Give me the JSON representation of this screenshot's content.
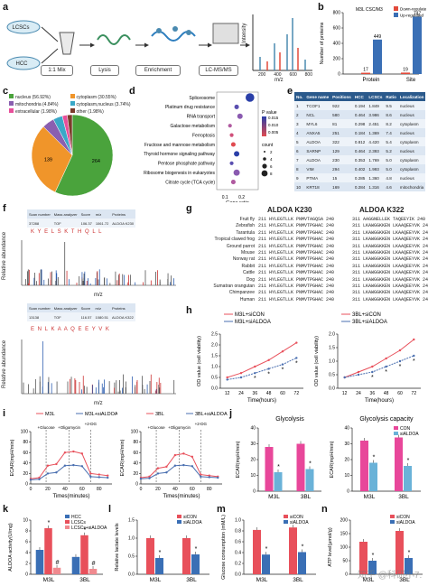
{
  "panels": {
    "a": "a",
    "b": "b",
    "c": "c",
    "d": "d",
    "e": "e",
    "f": "f",
    "g": "g",
    "h": "h",
    "i": "i",
    "j": "j",
    "k": "k",
    "l": "l",
    "m": "m",
    "n": "n"
  },
  "workflow": {
    "lcscs": "LCSCs",
    "hcc": "HCC",
    "mix": "1:1 Mix",
    "lysis": "Lysis",
    "enrichment": "Enrichment",
    "lcms": "LC-MS/MS",
    "ms_ylabel": "Intensity",
    "ms_xlabel": "m/z",
    "ms_ticks": [
      "200",
      "400",
      "600",
      "800"
    ]
  },
  "panel_b": {
    "legend_title": "M3L CSC/M3",
    "legend": [
      "Down-regulated",
      "Up-regulated"
    ],
    "ylabel": "Number of proteins",
    "colors": {
      "down": "#e24a3b",
      "up": "#3a6fb5"
    },
    "chart_data": {
      "type": "bar",
      "categories": [
        "Protein",
        "Site"
      ],
      "series": [
        {
          "name": "Down-regulated",
          "values": [
            17,
            19
          ]
        },
        {
          "name": "Up-regulated",
          "values": [
            449,
            747
          ]
        }
      ],
      "ylim": [
        0,
        800
      ],
      "yticks": [
        "0",
        "200",
        "400",
        "600",
        "800"
      ],
      "labels": [
        "17",
        "449",
        "19",
        "747"
      ]
    }
  },
  "panel_c": {
    "legend": [
      "nucleus (56.92%)",
      "cytoplasm (30.55%)",
      "mitochondria (4.84%)",
      "cytoplasm,nucleus (3.74%)",
      "extracellular (1.98%)",
      "other (1.98%)"
    ],
    "colors": [
      "#4aa33c",
      "#f0952a",
      "#8a5fb0",
      "#3aa8c8",
      "#e84f9a",
      "#7a3b2a"
    ],
    "chart_data": {
      "type": "pie",
      "values": [
        56.92,
        30.55,
        4.84,
        3.74,
        1.98,
        1.98
      ],
      "labels": [
        "264",
        "139",
        "",
        "",
        "",
        ""
      ]
    }
  },
  "panel_d": {
    "xlabel": "Gene ratio",
    "xticks": [
      "0.1",
      "0.2"
    ],
    "legend_p_title": "P value",
    "legend_p_ticks": [
      "0.015",
      "0.010",
      "0.005"
    ],
    "legend_count_title": "count",
    "legend_count_ticks": [
      "2",
      "4",
      "6",
      "8"
    ],
    "chart_data": {
      "type": "scatter",
      "categories": [
        "Spliceosome",
        "Platinum drug resistance",
        "RNA transport",
        "Galactose metabolism",
        "Ferroptosis",
        "Fructose and mannose metabolism",
        "Thyroid hormone signaling pathway",
        "Pentose phosphate pathway",
        "Ribosome biogenesis in eukaryotes",
        "Citrate cycle (TCA cycle)"
      ],
      "x": [
        0.25,
        0.17,
        0.19,
        0.13,
        0.14,
        0.15,
        0.17,
        0.14,
        0.17,
        0.15
      ],
      "size": [
        8,
        3,
        4,
        2,
        2,
        3,
        4,
        2,
        5,
        3
      ]
    }
  },
  "panel_e": {
    "headers": [
      "No.",
      "Gene name",
      "Positions",
      "HCC",
      "LCSCs",
      "Ratio",
      "Localization"
    ],
    "rows": [
      [
        "1",
        "TCOF1",
        "922",
        "0.194",
        "1.849",
        "9.5",
        "nucleus"
      ],
      [
        "2",
        "NCL",
        "580",
        "0.464",
        "3.986",
        "8.6",
        "nucleus"
      ],
      [
        "3",
        "MYL6",
        "81",
        "0.298",
        "2.451",
        "8.2",
        "cytoplasm"
      ],
      [
        "4",
        "ANXA5",
        "251",
        "0.184",
        "1.369",
        "7.4",
        "nucleus"
      ],
      [
        "5",
        "ALDOA",
        "322",
        "0.812",
        "4.420",
        "5.4",
        "cytoplasm"
      ],
      [
        "6",
        "SARNP",
        "129",
        "0.464",
        "2.393",
        "5.2",
        "nucleus"
      ],
      [
        "7",
        "ALDOA",
        "230",
        "0.353",
        "1.769",
        "5.0",
        "cytoplasm"
      ],
      [
        "8",
        "VIM",
        "294",
        "0.402",
        "1.993",
        "5.0",
        "cytoplasm"
      ],
      [
        "9",
        "PTMA",
        "15",
        "0.285",
        "1.360",
        "4.8",
        "nucleus"
      ],
      [
        "10",
        "KRT18",
        "169",
        "0.284",
        "1.316",
        "4.6",
        "mitochondria"
      ]
    ]
  },
  "panel_f": {
    "ylabel": "Relative abundance",
    "xlabel": "m/z",
    "top_headers": [
      "Scan number",
      "Mass analyzer",
      "Score",
      "m/z",
      "Proteins"
    ],
    "top_values": [
      "37288",
      "TOF",
      "106.37",
      "1061.72",
      "ALDOA K230"
    ],
    "bottom_headers": [
      "Scan number",
      "Mass analyzer",
      "Score",
      "m/z",
      "Proteins"
    ],
    "bottom_values": [
      "13138",
      "TOF",
      "116.57",
      "1080.51",
      "ALDOA K322"
    ],
    "seq_top": "K Y E L S K T H Q L L",
    "seq_bottom": "E N L K A A Q E E Y V K"
  },
  "panel_g": {
    "title1": "ALDOA K230",
    "title2": "ALDOA K322",
    "species": [
      "Fruit fly",
      "Zebrafish",
      "Tarantula",
      "Tropical clawed frog",
      "Ground parrot",
      "Mouse",
      "Norway rat",
      "Rabbit",
      "Cattle",
      "Dog",
      "Sumatran orangutan",
      "Chimpanzee",
      "Human"
    ],
    "seq1": [
      "211 HYLEGTLLK PNMVTAGQSA 240",
      "211 HYLEGTLLK PNMVTPGHAC 240",
      "211 HYLEGTLLK PNMVTPGHAC 240",
      "211 HYLEGTLLK PNMVTPGHAC 240",
      "211 HYLEGTLLK PNMVTPGHAC 240",
      "211 HYLEGTLLK PNMVTPGHAC 240",
      "211 HYLEGTLLK PNMVTPGHAC 240",
      "211 HYLEGTLLK PNMVTPGHAC 240",
      "211 HYLEGTLLK PNMVTPGHAC 240",
      "211 HYLEGTLLK PNMVTPGHAC 240",
      "211 HYLEGTLLK PNMVTPGHAC 240",
      "211 HYLEGTLLK PNMVTPGHAC 240",
      "211 HYLEGTLLK PNMVTPGHAC 240"
    ],
    "seq2": [
      "311 AAGGNELLEK TAQEEYIK 240",
      "311 LKAWGGKKEN LKAAQEEYVK 240",
      "311 LKAWGGKKEN LKAAQEEYVK 240",
      "311 LKAWGGKKEN LKAAQEEYVK 240",
      "311 LKAWGGKKEN LKAAQEEYVK 240",
      "311 LKAWGGKKEN LKAAQEEYVK 240",
      "311 LKAWGGKKEN LKAAQEEYVK 240",
      "311 LKAWGGKKEN LKAAQEEYVK 240",
      "311 LKAWGGKKEN LKAAQEEYVK 240",
      "311 LKAWGGKKEN LKAAQEEYVK 240",
      "311 LKAWGGKKEN LKAAQEEYVK 240",
      "311 LKAWGGKKEN LKAAQEEYVK 240",
      "311 LKAWGGKKEN LKAAQEEYVK 240"
    ]
  },
  "panel_h": {
    "ylabel": "OD value (cell viability)",
    "xlabel": "Time(hours)",
    "colors": {
      "con": "#e8505b",
      "si": "#4a6fb0"
    },
    "chart_data": [
      {
        "type": "line",
        "x": [
          12,
          24,
          36,
          48,
          60,
          72
        ],
        "series": [
          {
            "name": "M3L+siCON",
            "values": [
              0.5,
              0.7,
              1.0,
              1.3,
              1.7,
              2.1
            ]
          },
          {
            "name": "M3L+siALDOA",
            "values": [
              0.4,
              0.5,
              0.7,
              0.9,
              1.1,
              1.4
            ]
          }
        ],
        "xticks": [
          "12",
          "24",
          "36",
          "48",
          "60",
          "72"
        ],
        "yticks": [
          "0.0",
          "0.5",
          "1.0",
          "1.5",
          "2.0",
          "2.5"
        ],
        "ylim": [
          0,
          2.5
        ]
      },
      {
        "type": "line",
        "x": [
          12,
          24,
          36,
          48,
          60,
          72
        ],
        "series": [
          {
            "name": "3BL+siCON",
            "values": [
              0.4,
              0.6,
              0.8,
              1.1,
              1.4,
              1.8
            ]
          },
          {
            "name": "3BL+siALDOA",
            "values": [
              0.4,
              0.5,
              0.6,
              0.8,
              1.0,
              1.2
            ]
          }
        ],
        "xticks": [
          "12",
          "24",
          "36",
          "48",
          "60",
          "72"
        ],
        "yticks": [
          "0.0",
          "0.5",
          "1.0",
          "1.5",
          "2.0"
        ],
        "ylim": [
          0,
          2
        ]
      }
    ]
  },
  "panel_i": {
    "ylabel": "ECAR(mpH/min)",
    "xlabel": "Times(minutes)",
    "annot": [
      "+Glucose",
      "+Oligomycin",
      "+2-DG"
    ],
    "chart_data": [
      {
        "type": "line",
        "x": [
          0,
          10,
          20,
          30,
          40,
          50,
          60,
          70,
          80,
          90
        ],
        "series": [
          {
            "name": "M3L",
            "values": [
              10,
              12,
              35,
              38,
              60,
              62,
              58,
              20,
              18,
              16
            ]
          },
          {
            "name": "M3L+siALDOA",
            "values": [
              8,
              9,
              20,
              22,
              35,
              36,
              34,
              14,
              13,
              12
            ]
          }
        ],
        "xticks": [
          "0",
          "20",
          "40",
          "60",
          "80"
        ],
        "yticks": [
          "0",
          "20",
          "40",
          "60",
          "80",
          "100"
        ],
        "ylim": [
          0,
          100
        ]
      },
      {
        "type": "line",
        "x": [
          0,
          10,
          20,
          30,
          40,
          50,
          60,
          70,
          80,
          90
        ],
        "series": [
          {
            "name": "3BL",
            "values": [
              12,
              14,
              30,
              33,
              55,
              58,
              52,
              18,
              16,
              14
            ]
          },
          {
            "name": "3BL+siALDOA",
            "values": [
              10,
              11,
              20,
              22,
              35,
              36,
              34,
              14,
              13,
              12
            ]
          }
        ],
        "xticks": [
          "0",
          "20",
          "40",
          "60",
          "80"
        ],
        "yticks": [
          "0",
          "20",
          "40",
          "60",
          "80",
          "100"
        ],
        "ylim": [
          0,
          100
        ]
      }
    ]
  },
  "panel_j": {
    "ylabel": "ECAR(mpH/min)",
    "legend": [
      "CON",
      "siALDOA"
    ],
    "colors": {
      "con": "#e8479a",
      "si": "#6ab2d8"
    },
    "chart_data": [
      {
        "type": "bar",
        "title": "Glycolysis",
        "categories": [
          "M3L",
          "3BL"
        ],
        "series": [
          {
            "name": "CON",
            "values": [
              28,
              30
            ]
          },
          {
            "name": "siALDOA",
            "values": [
              12,
              14
            ]
          }
        ],
        "yticks": [
          "0",
          "10",
          "20",
          "30",
          "40"
        ],
        "ylim": [
          0,
          40
        ]
      },
      {
        "type": "bar",
        "title": "Glycolysis capacity",
        "categories": [
          "M3L",
          "3BL"
        ],
        "series": [
          {
            "name": "CON",
            "values": [
              32,
              34
            ]
          },
          {
            "name": "siALDOA",
            "values": [
              18,
              16
            ]
          }
        ],
        "yticks": [
          "0",
          "10",
          "20",
          "30",
          "40"
        ],
        "ylim": [
          0,
          40
        ]
      }
    ]
  },
  "panel_k": {
    "ylabel": "ALDOA activity(U/mg)",
    "legend": [
      "HCC",
      "LCSCs",
      "LCSCs+siALDOA"
    ],
    "colors": [
      "#3a6fb5",
      "#e8505b",
      "#e8505b"
    ],
    "chart_data": {
      "type": "bar",
      "categories": [
        "M3L",
        "3BL"
      ],
      "series": [
        {
          "name": "HCC",
          "values": [
            4.5,
            3.2
          ]
        },
        {
          "name": "LCSCs",
          "values": [
            8.5,
            7.2
          ]
        },
        {
          "name": "LCSCs+siALDOA",
          "values": [
            1.2,
            1.0
          ]
        }
      ],
      "yticks": [
        "0",
        "2",
        "4",
        "6",
        "8",
        "10"
      ],
      "ylim": [
        0,
        10
      ]
    }
  },
  "panel_l": {
    "ylabel": "Relative lactate levels",
    "legend": [
      "siCON",
      "siALDOA"
    ],
    "colors": [
      "#e8505b",
      "#3a6fb5"
    ],
    "chart_data": {
      "type": "bar",
      "categories": [
        "M3L",
        "3BL"
      ],
      "series": [
        {
          "name": "siCON",
          "values": [
            1.0,
            1.0
          ]
        },
        {
          "name": "siALDOA",
          "values": [
            0.45,
            0.55
          ]
        }
      ],
      "yticks": [
        "0.0",
        "0.5",
        "1.0",
        "1.5"
      ],
      "ylim": [
        0,
        1.5
      ]
    }
  },
  "panel_m": {
    "ylabel": "Glucose consumption (mM/L)",
    "legend": [
      "siCON",
      "siALDOA"
    ],
    "colors": [
      "#e8505b",
      "#3a6fb5"
    ],
    "chart_data": {
      "type": "bar",
      "categories": [
        "M3L",
        "3BL"
      ],
      "series": [
        {
          "name": "siCON",
          "values": [
            0.9,
            0.95
          ]
        },
        {
          "name": "siALDOA",
          "values": [
            0.4,
            0.45
          ]
        }
      ],
      "yticks": [
        "0.0",
        "0.2",
        "0.4",
        "0.6",
        "0.8",
        "1.0"
      ],
      "ylim": [
        0,
        1.1
      ]
    }
  },
  "panel_n": {
    "ylabel": "ATP level(μmol/g)",
    "legend": [
      "siCON",
      "siALDOA"
    ],
    "colors": [
      "#e8505b",
      "#3a6fb5"
    ],
    "chart_data": {
      "type": "bar",
      "categories": [
        "M3L",
        "3BL"
      ],
      "series": [
        {
          "name": "siCON",
          "values": [
            120,
            160
          ]
        },
        {
          "name": "siALDOA",
          "values": [
            50,
            60
          ]
        }
      ],
      "yticks": [
        "0",
        "50",
        "100",
        "150",
        "200"
      ],
      "ylim": [
        0,
        200
      ]
    }
  },
  "star": "*",
  "hash": "#",
  "watermark": "知乎 @科研小7."
}
